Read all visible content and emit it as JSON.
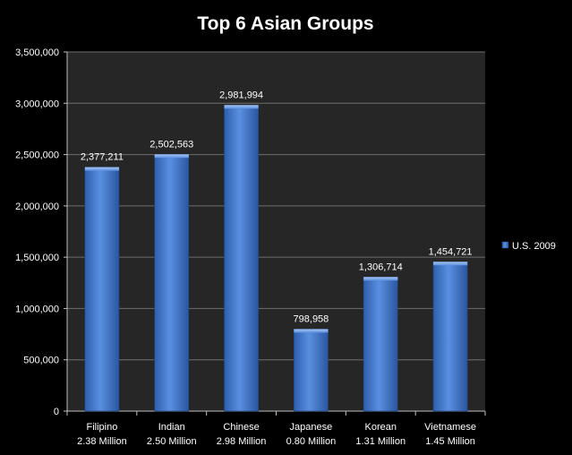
{
  "chart_data": {
    "type": "bar",
    "title": "Top 6 Asian Groups",
    "categories": [
      [
        "Filipino",
        "2.38 Million"
      ],
      [
        "Indian",
        "2.50 Million"
      ],
      [
        "Chinese",
        "2.98 Million"
      ],
      [
        "Japanese",
        "0.80 Million"
      ],
      [
        "Korean",
        "1.31 Million"
      ],
      [
        "Vietnamese",
        "1.45 Million"
      ]
    ],
    "series": [
      {
        "name": "U.S. 2009",
        "values": [
          2377211,
          2502563,
          2981994,
          798958,
          1306714,
          1454721
        ],
        "labels": [
          "2,377,211",
          "2,502,563",
          "2,981,994",
          "798,958",
          "1,306,714",
          "1,454,721"
        ]
      }
    ],
    "ylim": [
      0,
      3500000
    ],
    "yticks": [
      "0",
      "500,000",
      "1,000,000",
      "1,500,000",
      "2,000,000",
      "2,500,000",
      "3,000,000",
      "3,500,000"
    ],
    "grid": true,
    "legend": "right",
    "colors": {
      "page_background": "#000000",
      "plot_background": "#262626",
      "gridline": "#6e6e6e",
      "bar": "#4a7fd0",
      "text": "#ffffff"
    }
  }
}
